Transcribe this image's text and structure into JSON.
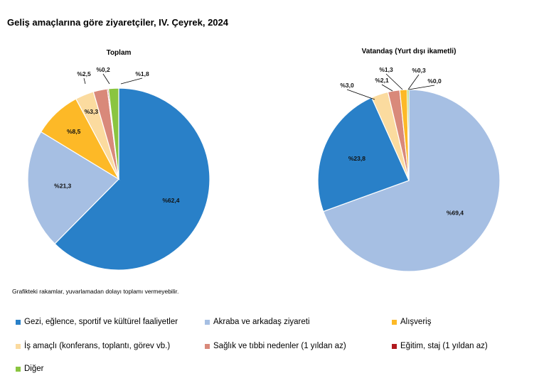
{
  "title": "Geliş amaçlarına göre ziyaretçiler, IV. Çeyrek, 2024",
  "note": "Grafikteki rakamlar, yuvarlamadan dolayı toplamı vermeyebilir.",
  "legend": [
    {
      "label": "Gezi, eğlence, sportif ve kültürel faaliyetler",
      "color": "#2980c8"
    },
    {
      "label": "Akraba ve arkadaş ziyareti",
      "color": "#a6bfe3"
    },
    {
      "label": "Alışveriş",
      "color": "#fdb927"
    },
    {
      "label": "İş amaçlı (konferans, toplantı, görev vb.)",
      "color": "#fbdb9f"
    },
    {
      "label": "Sağlık ve tıbbi nedenler (1 yıldan az)",
      "color": "#d9897a"
    },
    {
      "label": "Eğitim, staj (1 yıldan az)",
      "color": "#b0191e"
    },
    {
      "label": "Diğer",
      "color": "#8ac540"
    }
  ],
  "chart_data": [
    {
      "type": "pie",
      "title": "Toplam",
      "categories": [
        "Gezi, eğlence, sportif ve kültürel faaliyetler",
        "Akraba ve arkadaş ziyareti",
        "Alışveriş",
        "İş amaçlı (konferans, toplantı, görev vb.)",
        "Sağlık ve tıbbi nedenler (1 yıldan az)",
        "Eğitim, staj (1 yıldan az)",
        "Diğer"
      ],
      "values": [
        62.4,
        21.3,
        8.5,
        3.3,
        2.5,
        0.2,
        1.8
      ],
      "labels": [
        "%62,4",
        "%21,3",
        "%8,5",
        "%3,3",
        "%2,5",
        "%0,2",
        "%1,8"
      ]
    },
    {
      "type": "pie",
      "title": "Vatandaş (Yurt dışı ikametli)",
      "categories": [
        "Akraba ve arkadaş ziyareti",
        "Gezi, eğlence, sportif ve kültürel faaliyetler",
        "İş amaçlı (konferans, toplantı, görev vb.)",
        "Sağlık ve tıbbi nedenler (1 yıldan az)",
        "Alışveriş",
        "Diğer",
        "Eğitim, staj (1 yıldan az)"
      ],
      "values": [
        69.4,
        23.8,
        3.0,
        2.1,
        1.3,
        0.3,
        0.0
      ],
      "labels": [
        "%69,4",
        "%23,8",
        "%3,0",
        "%2,1",
        "%1,3",
        "%0,3",
        "%0,0"
      ]
    }
  ]
}
